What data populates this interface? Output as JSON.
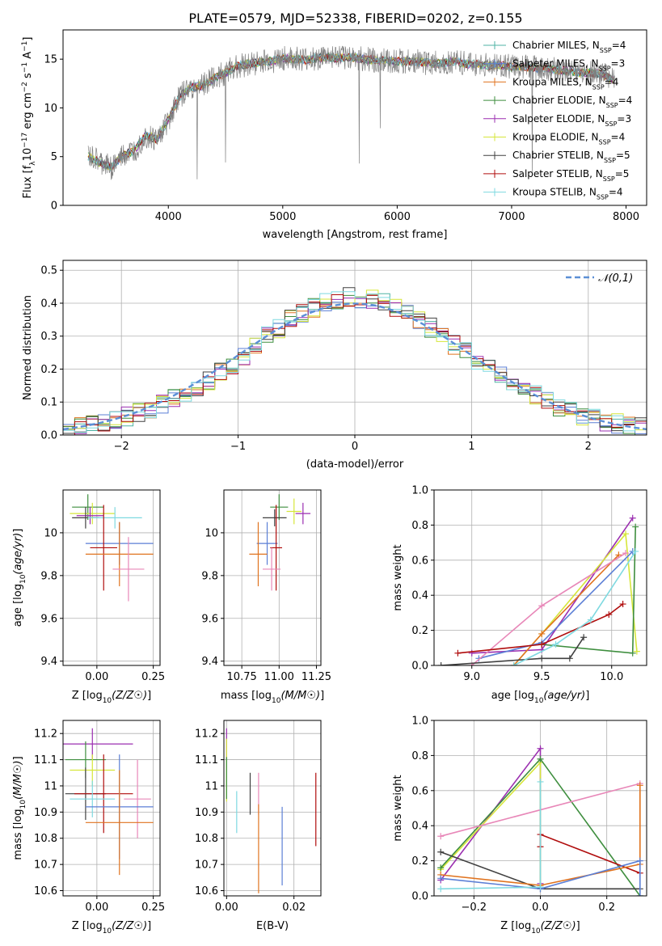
{
  "figure": {
    "title": "PLATE=0579, MJD=52338, FIBERID=0202, z=0.155"
  },
  "chart_data": [
    {
      "id": "spectrum",
      "type": "line",
      "title": "PLATE=0579, MJD=52338, FIBERID=0202, z=0.155",
      "xlabel": "wavelength [Angstrom, rest frame]",
      "ylabel": "Flux [f_λ10^-17 erg cm^-2 s^-1 A^-1]",
      "xlim": [
        3080,
        8180
      ],
      "ylim": [
        0,
        18
      ],
      "xticks": [
        4000,
        5000,
        6000,
        7000,
        8000
      ],
      "yticks": [
        0,
        5,
        10,
        15
      ],
      "grid": false,
      "legend_position": "top-right",
      "data_color": "#808080",
      "data_points": [
        [
          3300,
          5.0
        ],
        [
          3400,
          4.4
        ],
        [
          3500,
          3.9
        ],
        [
          3600,
          5.1
        ],
        [
          3700,
          5.6
        ],
        [
          3800,
          7.2
        ],
        [
          3900,
          6.8
        ],
        [
          4000,
          8.8
        ],
        [
          4100,
          11.2
        ],
        [
          4200,
          12.1
        ],
        [
          4300,
          12.3
        ],
        [
          4400,
          13.0
        ],
        [
          4500,
          13.6
        ],
        [
          4600,
          14.3
        ],
        [
          4700,
          14.5
        ],
        [
          4800,
          14.7
        ],
        [
          4900,
          14.8
        ],
        [
          5000,
          15.1
        ],
        [
          5100,
          15.0
        ],
        [
          5200,
          14.9
        ],
        [
          5300,
          15.1
        ],
        [
          5400,
          15.2
        ],
        [
          5500,
          15.1
        ],
        [
          5600,
          15.2
        ],
        [
          5700,
          15.0
        ],
        [
          5800,
          14.9
        ],
        [
          5900,
          14.9
        ],
        [
          6000,
          14.8
        ],
        [
          6100,
          14.8
        ],
        [
          6200,
          14.7
        ],
        [
          6300,
          14.6
        ],
        [
          6400,
          14.6
        ],
        [
          6500,
          14.8
        ],
        [
          6600,
          14.5
        ],
        [
          6700,
          14.5
        ],
        [
          6800,
          14.3
        ],
        [
          6900,
          14.4
        ],
        [
          7000,
          14.2
        ],
        [
          7100,
          14.2
        ],
        [
          7200,
          14.1
        ],
        [
          7300,
          14.1
        ],
        [
          7400,
          13.9
        ],
        [
          7500,
          13.8
        ],
        [
          7600,
          13.6
        ],
        [
          7700,
          13.6
        ],
        [
          7800,
          13.4
        ],
        [
          7900,
          12.8
        ]
      ],
      "series": [
        {
          "name": "Chabrier MILES",
          "nssp": "4",
          "color": "#4fb3a4"
        },
        {
          "name": "Salpeter MILES",
          "nssp": "3",
          "color": "#5b7fd6"
        },
        {
          "name": "Kroupa MILES",
          "nssp": "4",
          "color": "#e0731f"
        },
        {
          "name": "Chabrier ELODIE",
          "nssp": "4",
          "color": "#3e8e3e"
        },
        {
          "name": "Salpeter ELODIE",
          "nssp": "3",
          "color": "#9b2fb0"
        },
        {
          "name": "Kroupa ELODIE",
          "nssp": "4",
          "color": "#d6e63a"
        },
        {
          "name": "Chabrier STELIB",
          "nssp": "5",
          "color": "#404040"
        },
        {
          "name": "Salpeter STELIB",
          "nssp": "5",
          "color": "#b00d0d"
        },
        {
          "name": "Kroupa STELIB",
          "nssp": "4",
          "color": "#7ed9e0"
        }
      ]
    },
    {
      "id": "residuals",
      "type": "line",
      "xlabel": "(data-model)/error",
      "ylabel": "Normed distribution",
      "xlim": [
        -2.5,
        2.5
      ],
      "ylim": [
        0,
        0.53
      ],
      "xticks": [
        -2,
        -1,
        0,
        1,
        2
      ],
      "yticks": [
        0.0,
        0.1,
        0.2,
        0.3,
        0.4,
        0.5
      ],
      "grid": true,
      "legend_position": "top-right",
      "reference_curve": {
        "name": "𝒩(0,1)",
        "color": "#5b8fd6",
        "style": "dashed"
      },
      "bin_width": 0.1,
      "histogram_centers": [
        -2.45,
        -2.35,
        -2.25,
        -2.15,
        -2.05,
        -1.95,
        -1.85,
        -1.75,
        -1.65,
        -1.55,
        -1.45,
        -1.35,
        -1.25,
        -1.15,
        -1.05,
        -0.95,
        -0.85,
        -0.75,
        -0.65,
        -0.55,
        -0.45,
        -0.35,
        -0.25,
        -0.15,
        -0.05,
        0.05,
        0.15,
        0.25,
        0.35,
        0.45,
        0.55,
        0.65,
        0.75,
        0.85,
        0.95,
        1.05,
        1.15,
        1.25,
        1.35,
        1.45,
        1.55,
        1.65,
        1.75,
        1.85,
        1.95,
        2.05,
        2.15,
        2.25,
        2.35,
        2.45
      ],
      "histogram_base": [
        0.022,
        0.026,
        0.031,
        0.038,
        0.046,
        0.056,
        0.066,
        0.08,
        0.093,
        0.108,
        0.13,
        0.148,
        0.165,
        0.19,
        0.215,
        0.24,
        0.27,
        0.3,
        0.325,
        0.35,
        0.37,
        0.385,
        0.4,
        0.41,
        0.42,
        0.415,
        0.41,
        0.4,
        0.385,
        0.37,
        0.35,
        0.325,
        0.3,
        0.275,
        0.25,
        0.225,
        0.2,
        0.18,
        0.16,
        0.14,
        0.12,
        0.1,
        0.085,
        0.072,
        0.06,
        0.05,
        0.042,
        0.035,
        0.03,
        0.025
      ],
      "histograms": [
        {
          "name": "Chabrier MILES",
          "color": "#4fb3a4"
        },
        {
          "name": "Salpeter MILES",
          "color": "#5b7fd6"
        },
        {
          "name": "Kroupa MILES",
          "color": "#e0731f"
        },
        {
          "name": "Chabrier ELODIE",
          "color": "#3e8e3e"
        },
        {
          "name": "Salpeter ELODIE",
          "color": "#9b2fb0"
        },
        {
          "name": "Kroupa ELODIE",
          "color": "#d6e63a"
        },
        {
          "name": "Chabrier STELIB",
          "color": "#404040"
        },
        {
          "name": "Salpeter STELIB",
          "color": "#b00d0d"
        },
        {
          "name": "Kroupa STELIB",
          "color": "#7ed9e0"
        }
      ]
    },
    {
      "id": "age_vs_Z",
      "type": "scatter",
      "xlabel": "Z [log10(Z/Z☉)]",
      "ylabel": "age [log10(age/yr)]",
      "xlim": [
        -0.15,
        0.28
      ],
      "ylim": [
        9.38,
        10.2
      ],
      "xticks": [
        0.0,
        0.25
      ],
      "xtick_labels": [
        "0.00",
        "0.25"
      ],
      "yticks": [
        9.4,
        9.6,
        9.8,
        10.0
      ],
      "grid": true,
      "points": [
        {
          "x": -0.04,
          "y": 10.12,
          "xerr": 0.07,
          "yerr": 0.06,
          "color": "#3e8e3e"
        },
        {
          "x": -0.02,
          "y": 10.09,
          "xerr": 0.1,
          "yerr": 0.05,
          "color": "#d6e63a"
        },
        {
          "x": -0.03,
          "y": 10.08,
          "xerr": 0.06,
          "yerr": 0.04,
          "color": "#9b2fb0"
        },
        {
          "x": -0.05,
          "y": 10.07,
          "xerr": 0.06,
          "yerr": 0.05,
          "color": "#404040"
        },
        {
          "x": 0.08,
          "y": 10.07,
          "xerr": 0.12,
          "yerr": 0.05,
          "color": "#7ed9e0"
        },
        {
          "x": 0.1,
          "y": 9.95,
          "xerr": 0.15,
          "yerr": 0.1,
          "color": "#5b7fd6"
        },
        {
          "x": 0.03,
          "y": 9.93,
          "xerr": 0.06,
          "yerr": 0.2,
          "color": "#b00d0d"
        },
        {
          "x": 0.1,
          "y": 9.9,
          "xerr": 0.15,
          "yerr": 0.15,
          "color": "#e0731f"
        },
        {
          "x": 0.14,
          "y": 9.83,
          "xerr": 0.07,
          "yerr": 0.15,
          "color": "#e887b8"
        }
      ]
    },
    {
      "id": "age_vs_mass",
      "type": "scatter",
      "xlabel": "mass [log10(M/M☉)]",
      "xlim": [
        10.63,
        11.28
      ],
      "ylim": [
        9.38,
        10.2
      ],
      "xticks": [
        10.75,
        11.0,
        11.25
      ],
      "xtick_labels": [
        "10.75",
        "11.00",
        "11.25"
      ],
      "yticks": [
        9.4,
        9.6,
        9.8,
        10.0
      ],
      "grid": true,
      "points": [
        {
          "x": 11.0,
          "y": 10.12,
          "xerr": 0.06,
          "yerr": 0.06,
          "color": "#3e8e3e"
        },
        {
          "x": 11.1,
          "y": 10.1,
          "xerr": 0.05,
          "yerr": 0.06,
          "color": "#d6e63a"
        },
        {
          "x": 11.16,
          "y": 10.09,
          "xerr": 0.05,
          "yerr": 0.05,
          "color": "#9b2fb0"
        },
        {
          "x": 10.97,
          "y": 10.07,
          "xerr": 0.08,
          "yerr": 0.04,
          "color": "#404040"
        },
        {
          "x": 10.92,
          "y": 9.95,
          "xerr": 0.07,
          "yerr": 0.1,
          "color": "#5b7fd6"
        },
        {
          "x": 10.98,
          "y": 9.93,
          "xerr": 0.04,
          "yerr": 0.2,
          "color": "#b00d0d"
        },
        {
          "x": 10.86,
          "y": 9.9,
          "xerr": 0.06,
          "yerr": 0.15,
          "color": "#e0731f"
        },
        {
          "x": 10.95,
          "y": 9.83,
          "xerr": 0.06,
          "yerr": 0.1,
          "color": "#e887b8"
        }
      ]
    },
    {
      "id": "massweight_vs_age",
      "type": "line",
      "xlabel": "age [log10(age/yr)]",
      "ylabel": "mass weight",
      "xlim": [
        8.73,
        10.25
      ],
      "ylim": [
        0.0,
        1.0
      ],
      "xticks": [
        9.0,
        9.5,
        10.0
      ],
      "xtick_labels": [
        "9.0",
        "9.5",
        "10.0"
      ],
      "yticks": [
        0.0,
        0.2,
        0.4,
        0.6,
        0.8,
        1.0
      ],
      "grid": true,
      "series": [
        {
          "color": "#9b2fb0",
          "x": [
            9.0,
            9.5,
            10.15
          ],
          "y": [
            0.07,
            0.09,
            0.84
          ]
        },
        {
          "color": "#d6e63a",
          "x": [
            9.3,
            9.5,
            10.1,
            10.18
          ],
          "y": [
            0.0,
            0.18,
            0.75,
            0.08
          ]
        },
        {
          "color": "#e0731f",
          "x": [
            9.3,
            9.5,
            10.05
          ],
          "y": [
            0.0,
            0.18,
            0.63
          ]
        },
        {
          "color": "#5b7fd6",
          "x": [
            9.05,
            9.5,
            10.15
          ],
          "y": [
            0.04,
            0.13,
            0.65
          ]
        },
        {
          "color": "#e887b8",
          "x": [
            9.0,
            9.5,
            10.1
          ],
          "y": [
            0.0,
            0.34,
            0.64
          ]
        },
        {
          "color": "#3e8e3e",
          "x": [
            9.5,
            10.15,
            10.17
          ],
          "y": [
            0.12,
            0.07,
            0.79
          ]
        },
        {
          "color": "#404040",
          "x": [
            8.78,
            9.5,
            9.7,
            9.8
          ],
          "y": [
            0.0,
            0.04,
            0.04,
            0.16
          ]
        },
        {
          "color": "#b00d0d",
          "x": [
            8.9,
            9.5,
            9.98,
            10.08
          ],
          "y": [
            0.07,
            0.12,
            0.29,
            0.35
          ]
        },
        {
          "color": "#7ed9e0",
          "x": [
            9.3,
            9.6,
            9.85,
            10.17
          ],
          "y": [
            0.0,
            0.12,
            0.26,
            0.65
          ]
        }
      ]
    },
    {
      "id": "mass_vs_Z",
      "type": "scatter",
      "xlabel": "Z [log10(Z/Z☉)]",
      "ylabel": "mass [log10(M/M☉)]",
      "xlim": [
        -0.15,
        0.28
      ],
      "ylim": [
        10.58,
        11.25
      ],
      "xticks": [
        0.0,
        0.25
      ],
      "xtick_labels": [
        "0.00",
        "0.25"
      ],
      "yticks": [
        10.6,
        10.7,
        10.8,
        10.9,
        11.0,
        11.1,
        11.2
      ],
      "grid": true,
      "points": [
        {
          "x": -0.02,
          "y": 11.16,
          "xerr": 0.18,
          "yerr": 0.06,
          "color": "#9b2fb0"
        },
        {
          "x": -0.05,
          "y": 11.1,
          "xerr": 0.09,
          "yerr": 0.07,
          "color": "#3e8e3e"
        },
        {
          "x": -0.02,
          "y": 11.06,
          "xerr": 0.1,
          "yerr": 0.06,
          "color": "#d6e63a"
        },
        {
          "x": -0.05,
          "y": 10.97,
          "xerr": 0.09,
          "yerr": 0.1,
          "color": "#404040"
        },
        {
          "x": 0.03,
          "y": 10.97,
          "xerr": 0.13,
          "yerr": 0.15,
          "color": "#b00d0d"
        },
        {
          "x": -0.02,
          "y": 10.95,
          "xerr": 0.1,
          "yerr": 0.07,
          "color": "#7ed9e0"
        },
        {
          "x": 0.18,
          "y": 10.95,
          "xerr": 0.06,
          "yerr": 0.15,
          "color": "#e887b8"
        },
        {
          "x": 0.1,
          "y": 10.92,
          "xerr": 0.15,
          "yerr": 0.2,
          "color": "#5b7fd6"
        },
        {
          "x": 0.1,
          "y": 10.86,
          "xerr": 0.15,
          "yerr": 0.2,
          "color": "#e0731f"
        }
      ]
    },
    {
      "id": "mass_vs_EBV",
      "type": "scatter",
      "xlabel": "E(B-V)",
      "xlim": [
        -0.0008,
        0.028
      ],
      "ylim": [
        10.58,
        11.25
      ],
      "xticks": [
        0.0,
        0.02
      ],
      "xtick_labels": [
        "0.00",
        "0.02"
      ],
      "yticks": [
        10.6,
        10.7,
        10.8,
        10.9,
        11.0,
        11.1,
        11.2
      ],
      "grid": true,
      "points": [
        {
          "x": 0.0,
          "y": 11.16,
          "yerr": 0.06,
          "color": "#9b2fb0"
        },
        {
          "x": 0.0,
          "y": 11.06,
          "yerr": 0.12,
          "color": "#d6e63a"
        },
        {
          "x": 0.0,
          "y": 11.03,
          "yerr": 0.08,
          "color": "#3e8e3e"
        },
        {
          "x": 0.003,
          "y": 10.9,
          "yerr": 0.08,
          "color": "#7ed9e0"
        },
        {
          "x": 0.007,
          "y": 10.97,
          "yerr": 0.08,
          "color": "#404040"
        },
        {
          "x": 0.0095,
          "y": 10.97,
          "yerr": 0.08,
          "color": "#e887b8"
        },
        {
          "x": 0.0095,
          "y": 10.76,
          "yerr": 0.17,
          "color": "#e0731f"
        },
        {
          "x": 0.0165,
          "y": 10.77,
          "yerr": 0.15,
          "color": "#5b7fd6"
        },
        {
          "x": 0.0265,
          "y": 10.91,
          "yerr": 0.14,
          "color": "#b00d0d"
        }
      ]
    },
    {
      "id": "massweight_vs_Z",
      "type": "line",
      "xlabel": "Z [log10(Z/Z☉)]",
      "ylabel": "mass weight",
      "xlim": [
        -0.32,
        0.32
      ],
      "ylim": [
        0.0,
        1.0
      ],
      "xticks": [
        -0.2,
        0.0,
        0.2
      ],
      "xtick_labels": [
        "−0.2",
        "0.0",
        "0.2"
      ],
      "yticks": [
        0.0,
        0.2,
        0.4,
        0.6,
        0.8,
        1.0
      ],
      "grid": true,
      "series": [
        {
          "color": "#9b2fb0",
          "x": [
            -0.3,
            0.0,
            0.0
          ],
          "y": [
            0.09,
            0.84,
            0.07
          ]
        },
        {
          "color": "#d6e63a",
          "x": [
            -0.3,
            0.0,
            0.0
          ],
          "y": [
            0.15,
            0.76,
            0.06
          ]
        },
        {
          "color": "#3e8e3e",
          "x": [
            -0.3,
            0.0,
            0.3
          ],
          "y": [
            0.16,
            0.78,
            0.0
          ]
        },
        {
          "color": "#e887b8",
          "x": [
            -0.3,
            0.3
          ],
          "y": [
            0.34,
            0.64
          ]
        },
        {
          "color": "#404040",
          "x": [
            -0.3,
            0.0,
            0.3
          ],
          "y": [
            0.25,
            0.04,
            0.04
          ]
        },
        {
          "color": "#b00d0d",
          "x": [
            0.0,
            0.0,
            0.3
          ],
          "y": [
            0.28,
            0.35,
            0.13
          ]
        },
        {
          "color": "#e0731f",
          "x": [
            -0.3,
            0.0,
            0.3,
            0.3
          ],
          "y": [
            0.12,
            0.06,
            0.18,
            0.63
          ]
        },
        {
          "color": "#5b7fd6",
          "x": [
            -0.3,
            0.0,
            0.3,
            0.3
          ],
          "y": [
            0.1,
            0.04,
            0.2,
            0.0
          ]
        },
        {
          "color": "#7ed9e0",
          "x": [
            -0.3,
            0.0,
            0.0
          ],
          "y": [
            0.04,
            0.05,
            0.65
          ]
        }
      ]
    }
  ]
}
